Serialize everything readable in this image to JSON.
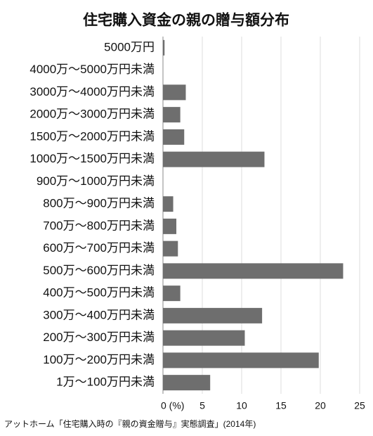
{
  "chart_data": {
    "type": "bar",
    "orientation": "horizontal",
    "title": "住宅購入資金の親の贈与額分布",
    "source": "アットホーム「住宅購入時の『親の資金贈与』実態調査」(2014年)",
    "categories": [
      "5000万円",
      "4000万～5000万円未満",
      "3000万～4000万円未満",
      "2000万～3000万円未満",
      "1500万～2000万円未満",
      "1000万～1500万円未満",
      "900万～1000万円未満",
      "800万～900万円未満",
      "700万～800万円未満",
      "600万～700万円未満",
      "500万～600万円未満",
      "400万～500万円未満",
      "300万～400万円未満",
      "200万～300万円未満",
      "100万～200万円未満",
      "1万～100万円未満"
    ],
    "values": [
      0.2,
      0,
      2.9,
      2.2,
      2.7,
      12.9,
      0,
      1.3,
      1.7,
      1.9,
      22.9,
      2.2,
      12.6,
      10.4,
      19.8,
      6.0
    ],
    "color": "#6e6e6e",
    "xlim": [
      0,
      25
    ],
    "xticks": [
      {
        "value": 0,
        "label": "0 (%)"
      },
      5,
      10,
      15,
      20,
      25
    ],
    "grid": true
  }
}
